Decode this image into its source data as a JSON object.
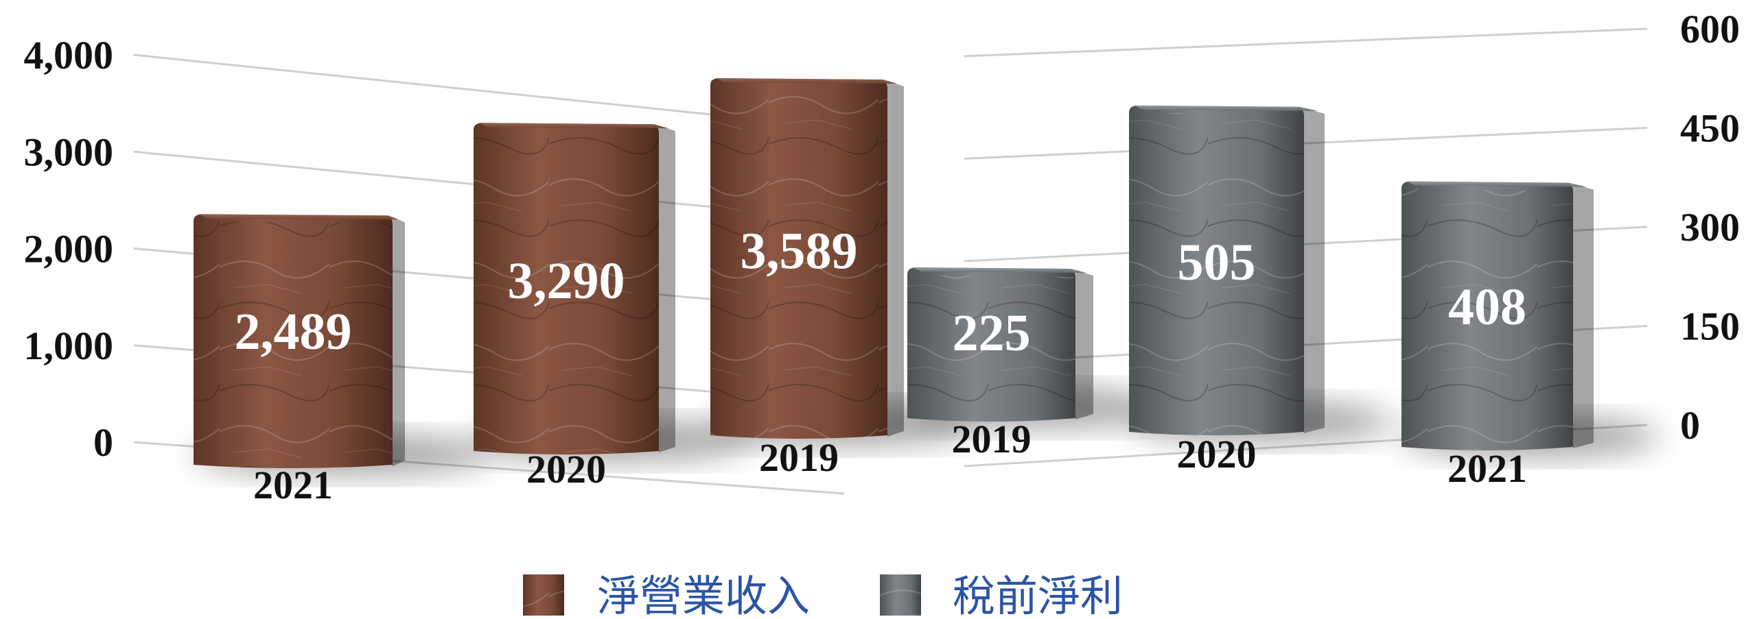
{
  "chart_data": [
    {
      "type": "bar",
      "categories": [
        "2021",
        "2020",
        "2019"
      ],
      "series": [
        {
          "name": "淨營業收入",
          "values": [
            2489,
            3290,
            3589
          ]
        }
      ],
      "value_labels": [
        "2,489",
        "3,290",
        "3,589"
      ],
      "yticks": [
        "0",
        "1,000",
        "2,000",
        "3,000",
        "4,000"
      ],
      "ylim": [
        0,
        4000
      ],
      "grid": true,
      "color": "#7a4a38",
      "axis": "left"
    },
    {
      "type": "bar",
      "categories": [
        "2019",
        "2020",
        "2021"
      ],
      "series": [
        {
          "name": "稅前淨利",
          "values": [
            225,
            505,
            408
          ]
        }
      ],
      "value_labels": [
        "225",
        "505",
        "408"
      ],
      "yticks": [
        "0",
        "150",
        "300",
        "450",
        "600"
      ],
      "ylim": [
        0,
        600
      ],
      "grid": true,
      "color": "#6b7073",
      "axis": "right"
    }
  ],
  "legend": {
    "placement": "bottom-center",
    "items": [
      {
        "label": "淨營業收入",
        "color": "#7a4a38"
      },
      {
        "label": "稅前淨利",
        "color": "#6b7073"
      }
    ]
  }
}
